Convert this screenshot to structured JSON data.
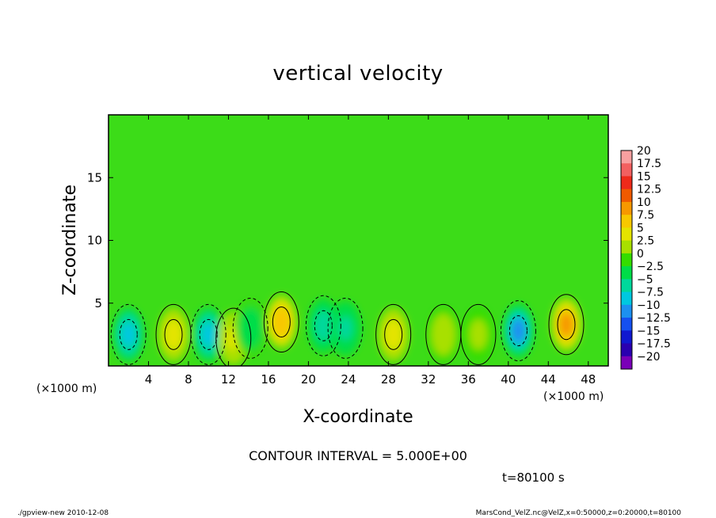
{
  "chart_data": {
    "type": "heatmap",
    "title": "vertical velocity",
    "xlabel": "X-coordinate",
    "ylabel": "Z-coordinate",
    "x_unit_label_left": "(×1000 m)",
    "x_unit_label_right": "(×1000 m)",
    "xlim": [
      0,
      50
    ],
    "ylim": [
      0,
      20
    ],
    "x_ticks": [
      "4",
      "8",
      "12",
      "16",
      "20",
      "24",
      "28",
      "32",
      "36",
      "40",
      "44",
      "48"
    ],
    "x_tick_values": [
      4,
      8,
      12,
      16,
      20,
      24,
      28,
      32,
      36,
      40,
      44,
      48
    ],
    "y_ticks": [
      "5",
      "10",
      "15"
    ],
    "y_tick_values": [
      5,
      10,
      15
    ],
    "colorbar": {
      "labels": [
        "20",
        "17.5",
        "15",
        "12.5",
        "10",
        "7.5",
        "5",
        "2.5",
        "0",
        "−2.5",
        "−5",
        "−7.5",
        "−10",
        "−12.5",
        "−15",
        "−17.5",
        "−20"
      ],
      "values": [
        20,
        17.5,
        15,
        12.5,
        10,
        7.5,
        5,
        2.5,
        0,
        -2.5,
        -5,
        -7.5,
        -10,
        -12.5,
        -15,
        -17.5,
        -20
      ],
      "colors": [
        "#f8a0a0",
        "#f26060",
        "#ee2a1a",
        "#f05a00",
        "#f79800",
        "#f8c800",
        "#e4e400",
        "#a8e000",
        "#34dd00",
        "#00dd48",
        "#00d89c",
        "#00c8e0",
        "#1c90f0",
        "#1550f0",
        "#1018d0",
        "#2a00b0",
        "#7a00b8"
      ]
    },
    "cells": [
      {
        "x": 2.0,
        "z": 2.5,
        "w": -7
      },
      {
        "x": 6.5,
        "z": 2.5,
        "w": 6
      },
      {
        "x": 10.0,
        "z": 2.5,
        "w": -7
      },
      {
        "x": 12.5,
        "z": 2.2,
        "w": 4
      },
      {
        "x": 14.2,
        "z": 3.0,
        "w": -3
      },
      {
        "x": 17.3,
        "z": 3.5,
        "w": 8
      },
      {
        "x": 21.5,
        "z": 3.2,
        "w": -5
      },
      {
        "x": 23.7,
        "z": 3.0,
        "w": -4
      },
      {
        "x": 28.5,
        "z": 2.5,
        "w": 6
      },
      {
        "x": 33.5,
        "z": 2.5,
        "w": 3
      },
      {
        "x": 37.0,
        "z": 2.5,
        "w": 2
      },
      {
        "x": 41.0,
        "z": 2.8,
        "w": -9
      },
      {
        "x": 45.8,
        "z": 3.3,
        "w": 9
      }
    ],
    "contour_interval": "CONTOUR INTERVAL = 5.000E+00",
    "time_label": "t=80100 s"
  },
  "footer": {
    "left": "./gpview-new   2010-12-08",
    "right": "MarsCond_VelZ.nc@VelZ,x=0:50000,z=0:20000,t=80100"
  }
}
